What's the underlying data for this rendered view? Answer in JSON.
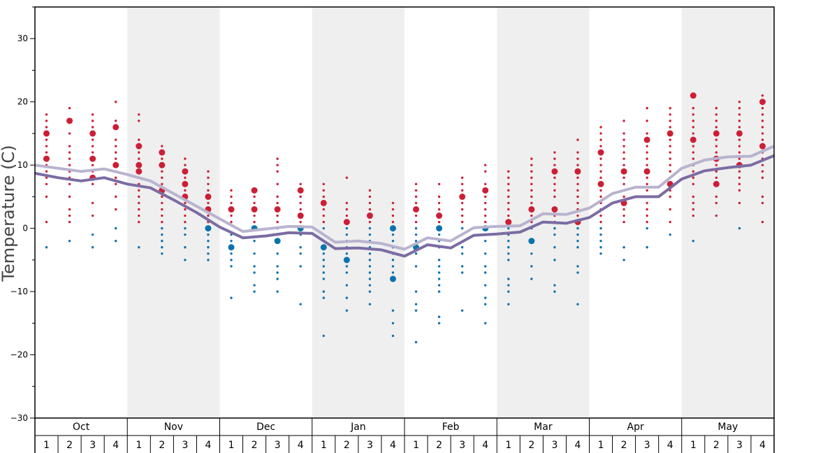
{
  "chart_data": {
    "type": "scatter",
    "ylabel": "Temperature (C)",
    "ylim": [
      -30,
      35
    ],
    "yticks": [
      30,
      20,
      10,
      0,
      -10,
      -20,
      -30
    ],
    "months": [
      "Oct",
      "Nov",
      "Dec",
      "Jan",
      "Feb",
      "Mar",
      "Apr",
      "May"
    ],
    "weeks": [
      "1",
      "2",
      "3",
      "4"
    ],
    "shaded_months": [
      "Nov",
      "Jan",
      "Mar",
      "May"
    ],
    "colors": {
      "warm": "#cc1f36",
      "cold": "#0a73ad",
      "shade": "#efefef",
      "line_upper": "#b9b3cf",
      "line_lower": "#7b6ca3"
    },
    "series": [
      {
        "name": "",
        "style": "line_upper",
        "values": [
          10.0,
          9.5,
          9.0,
          9.4,
          8.5,
          7.5,
          5.5,
          3.5,
          1.5,
          -0.5,
          -0.1,
          0.3,
          0.2,
          -2.2,
          -2.0,
          -2.4,
          -3.3,
          -1.5,
          -2.0,
          0.1,
          0.3,
          0.4,
          2.3,
          2.2,
          3.2,
          5.5,
          6.5,
          6.5,
          9.5,
          10.8,
          11.3,
          11.4,
          13.0
        ]
      },
      {
        "name": "",
        "style": "line_lower",
        "values": [
          8.7,
          8.0,
          7.5,
          8.0,
          7.0,
          6.4,
          4.5,
          2.5,
          0.2,
          -1.5,
          -1.2,
          -0.7,
          -0.8,
          -3.2,
          -3.1,
          -3.4,
          -4.4,
          -2.6,
          -3.1,
          -1.1,
          -0.9,
          -0.6,
          1.0,
          0.8,
          1.7,
          4.0,
          5.0,
          5.0,
          7.8,
          9.1,
          9.6,
          10.0,
          11.5
        ]
      }
    ],
    "weekly_observations": [
      {
        "month": "Oct",
        "week": 1,
        "values": [
          18,
          17,
          16,
          15,
          14,
          13,
          12,
          11,
          10,
          9,
          8,
          7,
          5,
          1,
          -3
        ],
        "emphasized": [
          15,
          11
        ]
      },
      {
        "month": "Oct",
        "week": 2,
        "values": [
          19,
          17,
          15,
          13,
          12,
          11,
          10,
          9,
          8,
          7,
          5,
          3,
          2,
          1,
          -2
        ],
        "emphasized": [
          17
        ]
      },
      {
        "month": "Oct",
        "week": 3,
        "values": [
          18,
          17,
          16,
          15,
          14,
          13,
          12,
          11,
          10,
          9,
          8,
          7,
          4,
          2,
          -1,
          -3
        ],
        "emphasized": [
          15,
          11,
          8
        ]
      },
      {
        "month": "Oct",
        "week": 4,
        "values": [
          20,
          17,
          16,
          14,
          13,
          12,
          11,
          10,
          9,
          8,
          7,
          5,
          3,
          0,
          -2
        ],
        "emphasized": [
          16,
          10
        ]
      },
      {
        "month": "Nov",
        "week": 1,
        "values": [
          18,
          17,
          14,
          13,
          12,
          11,
          10,
          9,
          8,
          7,
          6,
          5,
          4,
          3,
          2,
          1,
          -3
        ],
        "emphasized": [
          13,
          10,
          9
        ]
      },
      {
        "month": "Nov",
        "week": 2,
        "values": [
          13,
          12,
          11,
          10,
          9,
          8,
          7,
          6,
          5,
          4,
          3,
          2,
          1,
          0,
          -1,
          -2,
          -3,
          -4
        ],
        "emphasized": [
          12,
          10,
          6
        ]
      },
      {
        "month": "Nov",
        "week": 3,
        "values": [
          11,
          10,
          9,
          8,
          7,
          6,
          5,
          4,
          3,
          2,
          1,
          0,
          -1,
          -3,
          -5
        ],
        "emphasized": [
          9,
          7,
          5
        ]
      },
      {
        "month": "Nov",
        "week": 4,
        "values": [
          9,
          8,
          7,
          6,
          5,
          4,
          3,
          2,
          1,
          0,
          -1,
          -2,
          -3,
          -4,
          -5
        ],
        "emphasized": [
          5,
          3,
          0
        ]
      },
      {
        "month": "Dec",
        "week": 1,
        "values": [
          6,
          5,
          4,
          3,
          2,
          1,
          -1,
          -2,
          -3,
          -4,
          -5,
          -6,
          -11
        ],
        "emphasized": [
          3,
          -3
        ]
      },
      {
        "month": "Dec",
        "week": 2,
        "values": [
          6,
          5,
          4,
          3,
          2,
          1,
          0,
          -2,
          -4,
          -6,
          -7,
          -9,
          -10
        ],
        "emphasized": [
          6,
          3,
          0
        ]
      },
      {
        "month": "Dec",
        "week": 3,
        "values": [
          11,
          10,
          9,
          7,
          5,
          4,
          3,
          2,
          1,
          0,
          -1,
          -2,
          -4,
          -6,
          -7,
          -8,
          -10
        ],
        "emphasized": [
          3,
          -2
        ]
      },
      {
        "month": "Dec",
        "week": 4,
        "values": [
          7,
          6,
          5,
          4,
          3,
          2,
          1,
          0,
          -1,
          -3,
          -4,
          -6,
          -12
        ],
        "emphasized": [
          6,
          2,
          0
        ]
      },
      {
        "month": "Jan",
        "week": 1,
        "values": [
          7,
          6,
          5,
          4,
          3,
          2,
          1,
          0,
          -1,
          -2,
          -3,
          -4,
          -5,
          -6,
          -7,
          -8,
          -10,
          -11,
          -17
        ],
        "emphasized": [
          4,
          -3
        ]
      },
      {
        "month": "Jan",
        "week": 2,
        "values": [
          8,
          4,
          3,
          2,
          1,
          0,
          -1,
          -2,
          -3,
          -4,
          -5,
          -6,
          -7,
          -9,
          -11,
          -13
        ],
        "emphasized": [
          1,
          -5
        ]
      },
      {
        "month": "Jan",
        "week": 3,
        "values": [
          6,
          5,
          4,
          3,
          2,
          1,
          0,
          -1,
          -2,
          -3,
          -4,
          -5,
          -6,
          -7,
          -8,
          -9,
          -10,
          -12
        ],
        "emphasized": [
          2
        ]
      },
      {
        "month": "Jan",
        "week": 4,
        "values": [
          4,
          3,
          2,
          1,
          0,
          -1,
          -2,
          -3,
          -4,
          -5,
          -6,
          -7,
          -8,
          -13,
          -15,
          -17
        ],
        "emphasized": [
          0,
          -8
        ]
      },
      {
        "month": "Feb",
        "week": 1,
        "values": [
          7,
          6,
          5,
          4,
          3,
          2,
          1,
          0,
          -1,
          -2,
          -3,
          -4,
          -6,
          -10,
          -12,
          -13,
          -18
        ],
        "emphasized": [
          3,
          -3
        ]
      },
      {
        "month": "Feb",
        "week": 2,
        "values": [
          7,
          5,
          4,
          3,
          2,
          1,
          0,
          -1,
          -2,
          -3,
          -5,
          -6,
          -7,
          -8,
          -9,
          -10,
          -14,
          -15
        ],
        "emphasized": [
          2,
          0
        ]
      },
      {
        "month": "Feb",
        "week": 3,
        "values": [
          8,
          7,
          6,
          5,
          4,
          3,
          2,
          1,
          0,
          -1,
          -3,
          -4,
          -6,
          -7,
          -13
        ],
        "emphasized": [
          5
        ]
      },
      {
        "month": "Feb",
        "week": 4,
        "values": [
          10,
          9,
          7,
          6,
          5,
          4,
          3,
          2,
          1,
          0,
          -1,
          -2,
          -4,
          -6,
          -7,
          -9,
          -11,
          -12,
          -15
        ],
        "emphasized": [
          6,
          0
        ]
      },
      {
        "month": "Mar",
        "week": 1,
        "values": [
          9,
          8,
          7,
          6,
          5,
          4,
          3,
          2,
          1,
          0,
          -1,
          -2,
          -3,
          -4,
          -5,
          -8,
          -9,
          -10,
          -12
        ],
        "emphasized": [
          1
        ]
      },
      {
        "month": "Mar",
        "week": 2,
        "values": [
          11,
          10,
          9,
          8,
          7,
          6,
          5,
          4,
          3,
          2,
          1,
          0,
          -2,
          -4,
          -6,
          -8
        ],
        "emphasized": [
          3,
          -2
        ]
      },
      {
        "month": "Mar",
        "week": 3,
        "values": [
          12,
          11,
          10,
          9,
          8,
          7,
          6,
          5,
          3,
          2,
          1,
          0,
          -1,
          -3,
          -5,
          -9,
          -10
        ],
        "emphasized": [
          9,
          3
        ]
      },
      {
        "month": "Mar",
        "week": 4,
        "values": [
          14,
          12,
          11,
          10,
          9,
          8,
          7,
          6,
          5,
          4,
          3,
          2,
          1,
          0,
          -1,
          -2,
          -3,
          -6,
          -7,
          -12
        ],
        "emphasized": [
          9,
          1
        ]
      },
      {
        "month": "Apr",
        "week": 1,
        "values": [
          16,
          15,
          14,
          13,
          12,
          11,
          10,
          9,
          8,
          7,
          6,
          5,
          4,
          3,
          2,
          1,
          0,
          -1,
          -2,
          -3,
          -4
        ],
        "emphasized": [
          12,
          7
        ]
      },
      {
        "month": "Apr",
        "week": 2,
        "values": [
          17,
          15,
          14,
          13,
          12,
          11,
          10,
          9,
          8,
          7,
          6,
          5,
          4,
          3,
          2,
          1,
          -3,
          -5
        ],
        "emphasized": [
          9,
          4
        ]
      },
      {
        "month": "Apr",
        "week": 3,
        "values": [
          19,
          17,
          15,
          14,
          13,
          12,
          11,
          10,
          9,
          8,
          7,
          6,
          5,
          4,
          3,
          2,
          1,
          0,
          -3
        ],
        "emphasized": [
          14,
          9
        ]
      },
      {
        "month": "Apr",
        "week": 4,
        "values": [
          19,
          18,
          17,
          16,
          15,
          14,
          13,
          12,
          11,
          10,
          9,
          8,
          7,
          6,
          5,
          3,
          1,
          -1
        ],
        "emphasized": [
          15,
          7
        ]
      },
      {
        "month": "May",
        "week": 1,
        "values": [
          21,
          19,
          18,
          17,
          16,
          15,
          14,
          13,
          12,
          11,
          10,
          9,
          8,
          7,
          5,
          4,
          3,
          2,
          -2
        ],
        "emphasized": [
          21,
          14
        ]
      },
      {
        "month": "May",
        "week": 2,
        "values": [
          19,
          18,
          17,
          16,
          15,
          14,
          13,
          12,
          11,
          10,
          9,
          8,
          7,
          5,
          4,
          2
        ],
        "emphasized": [
          15,
          11,
          7
        ]
      },
      {
        "month": "May",
        "week": 3,
        "values": [
          20,
          19,
          18,
          17,
          16,
          15,
          14,
          13,
          12,
          11,
          10,
          9,
          8,
          7,
          6,
          4,
          0
        ],
        "emphasized": [
          15,
          10
        ]
      },
      {
        "month": "May",
        "week": 4,
        "values": [
          21,
          20,
          19,
          18,
          17,
          16,
          15,
          14,
          13,
          12,
          11,
          10,
          9,
          8,
          5,
          4,
          1
        ],
        "emphasized": [
          20,
          13
        ]
      }
    ]
  }
}
